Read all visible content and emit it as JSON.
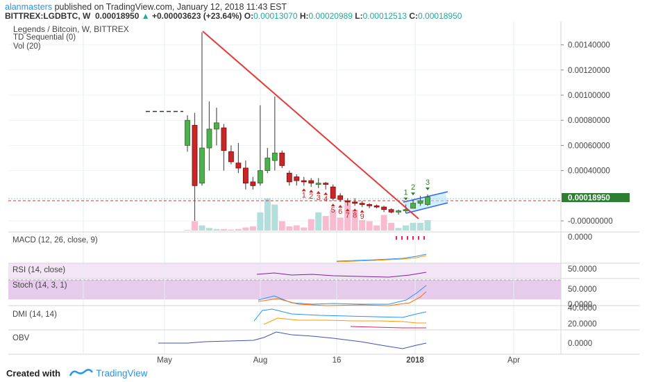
{
  "header": {
    "user": "alanmasters",
    "published": "published on TradingView.com, January 12, 2018 11:43 EST",
    "symbol": "BITTREX:LGDBTC, W",
    "last": "0.00018950",
    "change": "+0.00003623 (+23.64%)",
    "open_label": "O:",
    "open": "0.00013070",
    "high_label": "H:",
    "high": "0.00020989",
    "low_label": "L:",
    "low": "0.00012513",
    "close_label": "C:",
    "close": "0.00018950"
  },
  "legend": {
    "title": "Legends / Bitcoin, W, BITTREX",
    "td": "TD Sequential (0)",
    "vol": "Vol (20)"
  },
  "panes": {
    "macd": "MACD (12, 26, close, 9)",
    "rsi": "RSI (14, close)",
    "stoch": "Stoch (14, 3, 1)",
    "dmi": "DMI (14, 14)",
    "obv": "OBV"
  },
  "price_badge": "0.00018950",
  "footer": {
    "created": "Created with",
    "brand": "TradingView"
  },
  "colors": {
    "up": "#26a69a",
    "down": "#d32f2f",
    "trendline": "#e53935",
    "channel": "#2962ff",
    "macd": "#2196f3",
    "rsi": "#7b1fa2",
    "stoch_k": "#2196f3",
    "stoch_d": "#ff6d00"
  },
  "chart_data": {
    "type": "candlestick",
    "price_axis": {
      "ticks": [
        "0.00140000",
        "0.00120000",
        "0.00100000",
        "0.00080000",
        "0.00060000",
        "0.00040000",
        "-0.00000000"
      ],
      "tick_values": [
        0.0014,
        0.0012,
        0.001,
        0.0008,
        0.0006,
        0.0004,
        0
      ]
    },
    "time_axis": {
      "labels": [
        "May",
        "Aug",
        "16",
        "2018",
        "Apr"
      ]
    },
    "candles": [
      [
        0.0006,
        0.0008,
        0.00084,
        0.00055
      ],
      [
        0.00076,
        0.00028,
        0.00086,
        0.0
      ],
      [
        0.0003,
        0.00058,
        0.0015,
        0.00028
      ],
      [
        0.00058,
        0.00073,
        0.00095,
        0.0004
      ],
      [
        0.00073,
        0.00078,
        0.0009,
        0.0006
      ],
      [
        0.00074,
        0.00056,
        0.00077,
        0.0004
      ],
      [
        0.00055,
        0.00047,
        0.0006,
        0.00045
      ],
      [
        0.00046,
        0.00042,
        0.00062,
        0.00038
      ],
      [
        0.00042,
        0.0003,
        0.00048,
        0.00025
      ],
      [
        0.00031,
        0.00028,
        0.00035,
        0.00025
      ],
      [
        0.0003,
        0.0004,
        0.00092,
        0.00028
      ],
      [
        0.0004,
        0.0005,
        0.00058,
        0.00038
      ],
      [
        0.00048,
        0.00054,
        0.00099,
        0.0004
      ],
      [
        0.00054,
        0.00044,
        0.00056,
        0.00042
      ],
      [
        0.00038,
        0.00031,
        0.0004,
        0.00028
      ],
      [
        0.00035,
        0.00032,
        0.00037,
        0.00028
      ],
      [
        0.00032,
        0.00031,
        0.00035,
        0.00028
      ],
      [
        0.00032,
        0.0003,
        0.00034,
        0.00027
      ],
      [
        0.00029,
        0.0003,
        0.00034,
        0.00026
      ],
      [
        0.0003,
        0.00029,
        0.00031,
        0.00025
      ],
      [
        0.00027,
        0.00018,
        0.00029,
        0.00016
      ],
      [
        0.0002,
        0.00017,
        0.00022,
        0.00015
      ],
      [
        0.00016,
        0.00015,
        0.00018,
        0.00012
      ],
      [
        0.00015,
        0.00014,
        0.00018,
        0.00012
      ],
      [
        0.00014,
        0.00013,
        0.00016,
        0.00011
      ],
      [
        0.00013,
        0.00012,
        0.00014,
        0.0001
      ],
      [
        0.00012,
        0.00011,
        0.00013,
        0.0001
      ],
      [
        0.00011,
        9e-05,
        0.00012,
        7e-05
      ],
      [
        9e-05,
        7e-05,
        0.0001,
        6e-05
      ],
      [
        7e-05,
        8e-05,
        9e-05,
        5e-05
      ],
      [
        8e-05,
        9e-05,
        0.00013,
        6e-05
      ],
      [
        0.0001,
        0.00014,
        0.00017,
        0.0001
      ],
      [
        0.00014,
        0.00016,
        0.0002,
        0.00012
      ],
      [
        0.00013,
        0.00019,
        0.00021,
        0.00012
      ]
    ],
    "td_counts": {
      "sell": [
        {
          "bar": 30,
          "label": "1"
        },
        {
          "bar": 31,
          "label": "2"
        },
        {
          "bar": 33,
          "label": "3"
        }
      ],
      "buy": [
        {
          "bar": 16,
          "label": "1"
        },
        {
          "bar": 17,
          "label": "2"
        },
        {
          "bar": 18,
          "label": "3"
        },
        {
          "bar": 19,
          "label": "4"
        },
        {
          "bar": 20,
          "label": "5"
        },
        {
          "bar": 21,
          "label": "6"
        },
        {
          "bar": 22,
          "label": "7"
        },
        {
          "bar": 23,
          "label": "8"
        },
        {
          "bar": 24,
          "label": "9"
        }
      ]
    },
    "volume_relative": [
      0.0,
      0.18,
      0.1,
      0.05,
      0.03,
      0.03,
      0.02,
      0.03,
      0.06,
      0.08,
      0.35,
      0.62,
      0.5,
      0.18,
      0.08,
      0.1,
      0.06,
      0.22,
      0.35,
      0.28,
      0.4,
      0.25,
      0.55,
      0.4,
      0.2,
      0.18,
      0.1,
      0.3,
      0.15,
      0.05,
      0.1,
      0.15,
      0.15,
      0.2
    ],
    "annotations": {
      "red_dashed_level": 0.00016,
      "black_dashed_level": 0.00087
    },
    "macd_axis": "0.0000",
    "rsi_axis": "50.0000",
    "stoch_axis": [
      "50.0000",
      "0.0000"
    ],
    "dmi_axis": [
      "40.0000",
      "20.0000"
    ],
    "obv_axis": "0.0000"
  }
}
